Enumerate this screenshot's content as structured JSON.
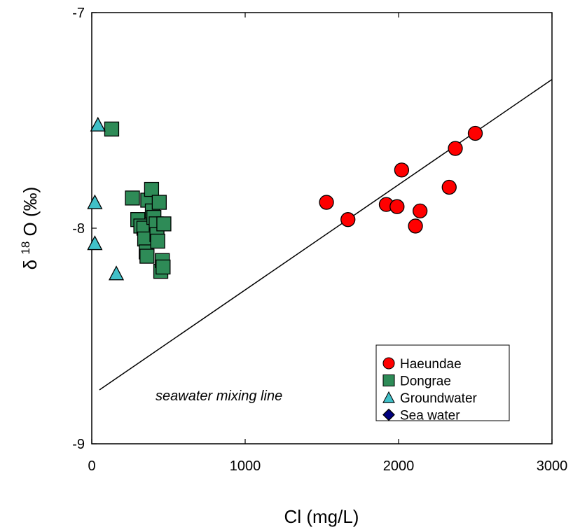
{
  "chart_data": {
    "type": "scatter",
    "title": "",
    "xlabel": "Cl (mg/L)",
    "ylabel_prefix": "δ",
    "ylabel_sup": "18",
    "ylabel_main": "O (‰)",
    "xlim": [
      0,
      3000
    ],
    "ylim": [
      -9,
      -7
    ],
    "xticks": [
      0,
      1000,
      2000,
      3000
    ],
    "yticks": [
      -9,
      -8,
      -7
    ],
    "xtick_labels": [
      "0",
      "1000",
      "2000",
      "3000"
    ],
    "ytick_labels": [
      "-9",
      "-8",
      "-7"
    ],
    "grid": false,
    "legend_position": "bottom-right",
    "series": [
      {
        "name": "Haeundae",
        "marker": "circle",
        "color": "#ff0000",
        "points": [
          [
            1530,
            -7.88
          ],
          [
            1670,
            -7.96
          ],
          [
            1920,
            -7.89
          ],
          [
            1990,
            -7.9
          ],
          [
            2020,
            -7.73
          ],
          [
            2110,
            -7.99
          ],
          [
            2140,
            -7.92
          ],
          [
            2330,
            -7.81
          ],
          [
            2370,
            -7.63
          ],
          [
            2500,
            -7.56
          ]
        ]
      },
      {
        "name": "Dongrae",
        "marker": "square",
        "color": "#2e8b57",
        "points": [
          [
            130,
            -7.54
          ],
          [
            265,
            -7.86
          ],
          [
            300,
            -7.96
          ],
          [
            320,
            -7.99
          ],
          [
            340,
            -8.0
          ],
          [
            345,
            -8.05
          ],
          [
            355,
            -8.11
          ],
          [
            360,
            -8.13
          ],
          [
            365,
            -7.87
          ],
          [
            390,
            -7.82
          ],
          [
            395,
            -7.92
          ],
          [
            405,
            -7.95
          ],
          [
            420,
            -7.98
          ],
          [
            425,
            -8.03
          ],
          [
            430,
            -8.06
          ],
          [
            440,
            -7.88
          ],
          [
            450,
            -8.2
          ],
          [
            460,
            -8.15
          ],
          [
            465,
            -8.18
          ],
          [
            470,
            -7.98
          ]
        ]
      },
      {
        "name": "Groundwater",
        "marker": "triangle",
        "color": "#40c0c8",
        "points": [
          [
            40,
            -7.52
          ],
          [
            20,
            -7.88
          ],
          [
            20,
            -8.07
          ],
          [
            160,
            -8.21
          ]
        ]
      },
      {
        "name": "Sea water",
        "marker": "diamond",
        "color": "#000080",
        "points": []
      }
    ],
    "mixing_line": {
      "label": "seawater mixing line",
      "x": [
        50,
        3000
      ],
      "y": [
        -8.75,
        -7.31
      ]
    }
  }
}
